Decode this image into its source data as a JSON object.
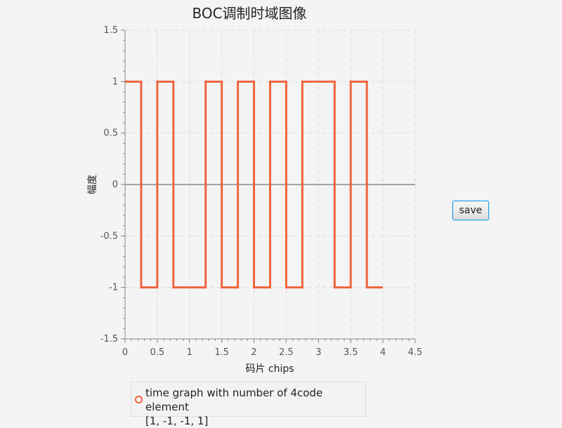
{
  "chart_data": {
    "type": "line",
    "title": "BOC调制时域图像",
    "xlabel": "码片 chips",
    "ylabel": "幅度",
    "xlim": [
      0,
      4.5
    ],
    "ylim": [
      -1.5,
      1.5
    ],
    "xticks": [
      0,
      0.5,
      1,
      1.5,
      2,
      2.5,
      3,
      3.5,
      4,
      4.5
    ],
    "xtick_labels": [
      "0",
      "0.5",
      "1",
      "1.5",
      "2",
      "2.5",
      "3",
      "3.5",
      "4",
      "4.5"
    ],
    "yticks": [
      1.5,
      1,
      0.5,
      0,
      -0.5,
      -1,
      -1.5
    ],
    "ytick_labels": [
      "1.5",
      "1",
      "0.5",
      "0",
      "-0.5",
      "-1",
      "-1.5"
    ],
    "grid": true,
    "legend_placement": "bottom",
    "series": [
      {
        "name": "time graph with number of 4code element [1, -1, -1, 1]",
        "color": "#f0643c",
        "x": [
          0,
          0.25,
          0.25,
          0.5,
          0.5,
          0.75,
          0.75,
          1.25,
          1.25,
          1.5,
          1.5,
          1.75,
          1.75,
          2.0,
          2.0,
          2.25,
          2.25,
          2.5,
          2.5,
          2.75,
          2.75,
          3.25,
          3.25,
          3.5,
          3.5,
          3.75,
          3.75,
          4.0
        ],
        "y": [
          1,
          1,
          -1,
          -1,
          1,
          1,
          -1,
          -1,
          1,
          1,
          -1,
          -1,
          1,
          1,
          -1,
          -1,
          1,
          1,
          -1,
          -1,
          1,
          1,
          -1,
          -1,
          1,
          1,
          -1,
          -1
        ]
      }
    ]
  },
  "controls": {
    "save_label": "save"
  },
  "legend": {
    "line1": "time graph with number of 4code element",
    "line2": "[1, -1, -1, 1]"
  }
}
